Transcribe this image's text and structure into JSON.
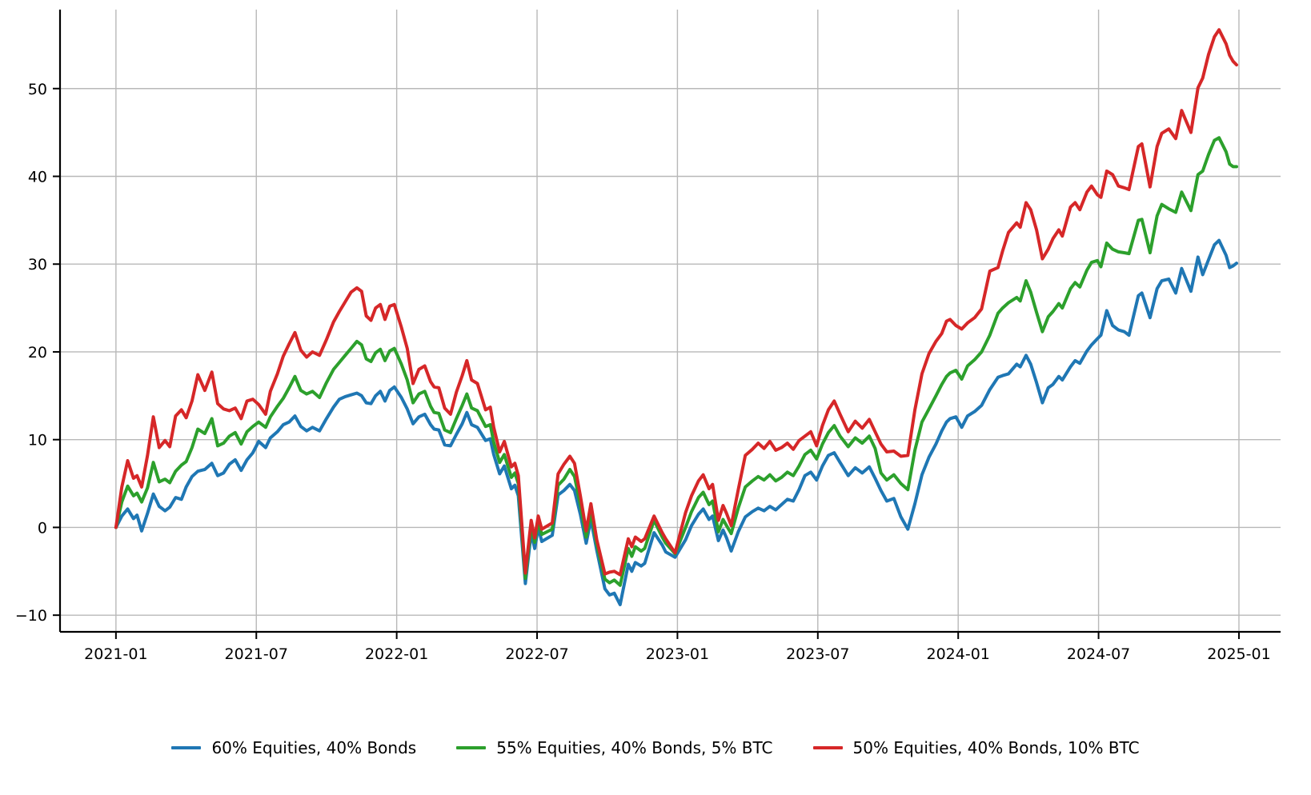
{
  "chart_data": {
    "type": "line",
    "title": "",
    "xlabel": "",
    "ylabel": "",
    "grid": true,
    "legend_position": "bottom-center",
    "x_unit": "months since 2021-01",
    "xlim_months": [
      -2.39,
      49.78
    ],
    "ylim": [
      -11.9,
      59.0
    ],
    "x_ticks": [
      {
        "m": 0,
        "label": "2021-01"
      },
      {
        "m": 6,
        "label": "2021-07"
      },
      {
        "m": 12,
        "label": "2022-01"
      },
      {
        "m": 18,
        "label": "2022-07"
      },
      {
        "m": 24,
        "label": "2023-01"
      },
      {
        "m": 30,
        "label": "2023-07"
      },
      {
        "m": 36,
        "label": "2024-01"
      },
      {
        "m": 42,
        "label": "2024-07"
      },
      {
        "m": 48,
        "label": "2025-01"
      }
    ],
    "y_ticks": [
      {
        "v": -10,
        "label": "−10"
      },
      {
        "v": 0,
        "label": "0"
      },
      {
        "v": 10,
        "label": "10"
      },
      {
        "v": 20,
        "label": "20"
      },
      {
        "v": 30,
        "label": "30"
      },
      {
        "v": 40,
        "label": "40"
      },
      {
        "v": 50,
        "label": "50"
      }
    ],
    "x_months": [
      0,
      0.25,
      0.5,
      0.75,
      0.9,
      1.1,
      1.35,
      1.6,
      1.85,
      2.1,
      2.3,
      2.55,
      2.8,
      3,
      3.25,
      3.5,
      3.8,
      4.1,
      4.35,
      4.6,
      4.85,
      5.1,
      5.35,
      5.6,
      5.85,
      6.1,
      6.4,
      6.6,
      6.9,
      7.15,
      7.4,
      7.65,
      7.9,
      8.15,
      8.4,
      8.7,
      9,
      9.3,
      9.55,
      9.8,
      10.05,
      10.3,
      10.5,
      10.7,
      10.9,
      11.1,
      11.3,
      11.5,
      11.7,
      11.9,
      12.2,
      12.45,
      12.7,
      12.95,
      13.2,
      13.45,
      13.6,
      13.8,
      14.05,
      14.3,
      14.55,
      14.8,
      15,
      15.2,
      15.45,
      15.8,
      16,
      16.15,
      16.4,
      16.6,
      16.9,
      17.05,
      17.2,
      17.5,
      17.75,
      17.9,
      18.05,
      18.2,
      18.65,
      18.9,
      19.15,
      19.4,
      19.6,
      19.85,
      20.1,
      20.3,
      20.55,
      20.9,
      21.1,
      21.3,
      21.55,
      21.9,
      22.05,
      22.2,
      22.45,
      22.6,
      23,
      23.35,
      23.5,
      23.9,
      24.35,
      24.6,
      24.9,
      25.1,
      25.35,
      25.5,
      25.75,
      25.95,
      26.1,
      26.3,
      26.6,
      26.9,
      27.2,
      27.45,
      27.7,
      27.95,
      28.2,
      28.45,
      28.7,
      28.95,
      29.2,
      29.45,
      29.7,
      29.95,
      30.2,
      30.45,
      30.7,
      30.95,
      31.3,
      31.6,
      31.9,
      32.2,
      32.45,
      32.7,
      32.95,
      33.25,
      33.55,
      33.85,
      34.15,
      34.45,
      34.75,
      35.05,
      35.3,
      35.5,
      35.65,
      35.9,
      36.15,
      36.4,
      36.7,
      37,
      37.35,
      37.7,
      37.9,
      38.15,
      38.5,
      38.65,
      38.9,
      39.1,
      39.35,
      39.6,
      39.85,
      40.05,
      40.3,
      40.45,
      40.8,
      41,
      41.2,
      41.5,
      41.7,
      41.95,
      42.1,
      42.35,
      42.6,
      42.85,
      43.1,
      43.3,
      43.7,
      43.85,
      44.2,
      44.5,
      44.7,
      45,
      45.3,
      45.55,
      45.95,
      46.25,
      46.45,
      46.7,
      46.95,
      47.15,
      47.45,
      47.6,
      47.75,
      47.9
    ],
    "series": [
      {
        "name": "60% Equities, 40% Bonds",
        "color": "#1f77b4",
        "values": [
          0,
          1.3,
          2.1,
          1,
          1.4,
          -0.4,
          1.6,
          3.8,
          2.4,
          1.9,
          2.3,
          3.4,
          3.2,
          4.6,
          5.8,
          6.4,
          6.6,
          7.3,
          5.9,
          6.2,
          7.2,
          7.7,
          6.5,
          7.7,
          8.5,
          9.8,
          9.1,
          10.2,
          10.9,
          11.7,
          12,
          12.7,
          11.5,
          11,
          11.4,
          11,
          12.4,
          13.7,
          14.6,
          14.9,
          15.1,
          15.3,
          15,
          14.2,
          14.1,
          15,
          15.5,
          14.4,
          15.6,
          16,
          14.8,
          13.5,
          11.8,
          12.6,
          12.9,
          11.7,
          11.2,
          11.1,
          9.4,
          9.3,
          10.6,
          11.8,
          13.1,
          11.7,
          11.4,
          9.9,
          10.1,
          8.3,
          6.1,
          7,
          4.4,
          4.8,
          3.6,
          -6.4,
          -0.6,
          -2.4,
          0,
          -1.6,
          -0.9,
          3.7,
          4.2,
          4.9,
          4.2,
          1.5,
          -1.8,
          0.9,
          -2.6,
          -7,
          -7.7,
          -7.5,
          -8.8,
          -4.2,
          -5,
          -4,
          -4.4,
          -4.1,
          -0.6,
          -2,
          -2.8,
          -3.4,
          -1.4,
          0.2,
          1.5,
          2.1,
          0.9,
          1.3,
          -1.5,
          -0.3,
          -1.2,
          -2.7,
          -0.5,
          1.2,
          1.8,
          2.2,
          1.9,
          2.4,
          2,
          2.6,
          3.2,
          3,
          4.3,
          5.9,
          6.3,
          5.4,
          7,
          8.2,
          8.5,
          7.4,
          5.9,
          6.8,
          6.2,
          6.9,
          5.6,
          4.2,
          3,
          3.3,
          1.2,
          -0.2,
          2.7,
          6,
          8,
          9.5,
          11,
          12,
          12.4,
          12.6,
          11.4,
          12.7,
          13.2,
          13.9,
          15.7,
          17.1,
          17.3,
          17.5,
          18.6,
          18.3,
          19.6,
          18.6,
          16.5,
          14.2,
          15.9,
          16.3,
          17.2,
          16.8,
          18.3,
          19,
          18.7,
          20.1,
          20.8,
          21.5,
          21.9,
          24.7,
          23,
          22.5,
          22.3,
          21.9,
          26.4,
          26.7,
          23.9,
          27.2,
          28.1,
          28.3,
          26.7,
          29.5,
          26.9,
          30.8,
          28.8,
          30.5,
          32.2,
          32.7,
          31,
          29.6,
          29.8,
          30.1
        ]
      },
      {
        "name": "55% Equities, 40% Bonds, 5% BTC",
        "color": "#2ca02c",
        "values": [
          0,
          2.9,
          4.7,
          3.6,
          3.9,
          2.9,
          4.5,
          7.4,
          5.2,
          5.5,
          5.1,
          6.4,
          7.1,
          7.5,
          9.1,
          11.2,
          10.7,
          12.4,
          9.3,
          9.6,
          10.4,
          10.8,
          9.5,
          10.9,
          11.5,
          12,
          11.4,
          12.6,
          13.8,
          14.7,
          15.9,
          17.2,
          15.6,
          15.2,
          15.5,
          14.8,
          16.5,
          18,
          18.8,
          19.6,
          20.4,
          21.2,
          20.8,
          19.2,
          18.9,
          19.9,
          20.3,
          19,
          20.1,
          20.4,
          18.6,
          16.8,
          14.2,
          15.2,
          15.5,
          13.8,
          13.1,
          13,
          11.1,
          10.8,
          12.4,
          13.9,
          15.2,
          13.6,
          13.3,
          11.5,
          11.7,
          9.7,
          7.4,
          8.3,
          5.7,
          6.2,
          5,
          -5.8,
          0.2,
          -1.7,
          0.7,
          -0.8,
          -0.2,
          4.8,
          5.5,
          6.6,
          5.8,
          2.6,
          -1.1,
          1.8,
          -1.9,
          -5.9,
          -6.3,
          -6,
          -6.6,
          -2.4,
          -3.3,
          -2.2,
          -2.7,
          -2.4,
          0.8,
          -1.1,
          -1.8,
          -3,
          0,
          1.8,
          3.4,
          4,
          2.6,
          3,
          -0.5,
          0.9,
          0.2,
          -0.7,
          2.2,
          4.6,
          5.3,
          5.8,
          5.4,
          6,
          5.3,
          5.7,
          6.3,
          5.9,
          7,
          8.3,
          8.8,
          7.8,
          9.5,
          10.8,
          11.6,
          10.4,
          9.2,
          10.2,
          9.6,
          10.4,
          9,
          6.2,
          5.4,
          6,
          5,
          4.3,
          8.8,
          12,
          13.5,
          15,
          16.3,
          17.2,
          17.6,
          17.9,
          16.9,
          18.4,
          19.1,
          20,
          21.9,
          24.4,
          25,
          25.6,
          26.2,
          25.8,
          28.1,
          26.8,
          24.5,
          22.3,
          24,
          24.6,
          25.5,
          25,
          27.2,
          27.9,
          27.4,
          29.3,
          30.2,
          30.4,
          29.7,
          32.4,
          31.7,
          31.4,
          31.3,
          31.2,
          35,
          35.1,
          31.3,
          35.5,
          36.8,
          36.3,
          35.9,
          38.2,
          36.1,
          40.2,
          40.6,
          42.5,
          44.1,
          44.4,
          42.8,
          41.4,
          41.1,
          41.1
        ]
      },
      {
        "name": "50% Equities, 40% Bonds, 10% BTC",
        "color": "#d62728",
        "values": [
          0,
          4.6,
          7.6,
          5.6,
          5.9,
          4.6,
          8.2,
          12.6,
          9.1,
          9.9,
          9.2,
          12.7,
          13.4,
          12.5,
          14.4,
          17.4,
          15.6,
          17.7,
          14.1,
          13.5,
          13.3,
          13.6,
          12.4,
          14.4,
          14.6,
          14,
          12.9,
          15.5,
          17.5,
          19.5,
          20.9,
          22.2,
          20.2,
          19.4,
          20,
          19.6,
          21.4,
          23.4,
          24.6,
          25.7,
          26.8,
          27.3,
          26.9,
          24.1,
          23.6,
          25,
          25.4,
          23.7,
          25.2,
          25.4,
          22.8,
          20.4,
          16.4,
          18,
          18.4,
          16.6,
          16,
          15.9,
          13.6,
          12.9,
          15.4,
          17.3,
          19,
          16.8,
          16.4,
          13.4,
          13.7,
          11.4,
          8.6,
          9.8,
          6.9,
          7.3,
          5.9,
          -5.2,
          0.8,
          -1.2,
          1.3,
          -0.2,
          0.5,
          6.1,
          7.2,
          8.1,
          7.3,
          3.6,
          -0.4,
          2.7,
          -1.4,
          -5.3,
          -5.1,
          -5,
          -5.4,
          -1.3,
          -2.2,
          -1.1,
          -1.6,
          -1.3,
          1.3,
          -0.6,
          -1.3,
          -2.9,
          1.7,
          3.6,
          5.3,
          6,
          4.4,
          4.9,
          0.8,
          2.5,
          1.6,
          0.2,
          4.3,
          8.2,
          8.9,
          9.6,
          9,
          9.8,
          8.8,
          9.1,
          9.6,
          8.9,
          9.9,
          10.4,
          10.9,
          9.3,
          11.6,
          13.4,
          14.4,
          12.9,
          10.9,
          12.1,
          11.3,
          12.3,
          10.9,
          9.5,
          8.6,
          8.7,
          8.1,
          8.2,
          13.4,
          17.5,
          19.8,
          21.2,
          22.1,
          23.5,
          23.7,
          23,
          22.6,
          23.3,
          23.9,
          24.9,
          29.2,
          29.6,
          31.5,
          33.6,
          34.7,
          34.2,
          37,
          36.2,
          33.9,
          30.6,
          31.7,
          32.9,
          33.9,
          33.2,
          36.5,
          37,
          36.2,
          38.2,
          38.9,
          37.9,
          37.6,
          40.6,
          40.2,
          38.9,
          38.7,
          38.5,
          43.4,
          43.7,
          38.8,
          43.4,
          44.9,
          45.4,
          44.3,
          47.5,
          45,
          50.1,
          51.2,
          53.9,
          55.9,
          56.7,
          55.1,
          53.8,
          53.1,
          52.7
        ]
      }
    ],
    "style": {
      "grid_color": "#b8b8b8",
      "spine_color": "#000000",
      "tick_font_px": 19,
      "legend_font_px": 20,
      "line_width": 4
    }
  }
}
